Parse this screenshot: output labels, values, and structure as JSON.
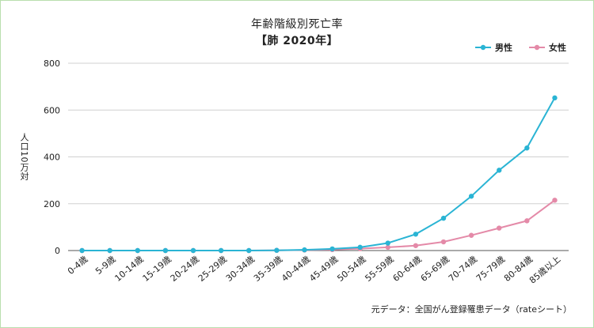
{
  "chart_data": {
    "type": "line",
    "title": "年齢階級別死亡率",
    "subtitle": "【肺 2020年】",
    "ylabel": "人口10万対",
    "xlabel": "",
    "ylim": [
      0,
      800
    ],
    "yticks": [
      0,
      200,
      400,
      600,
      800
    ],
    "grid": true,
    "legend_position": "top-right",
    "categories": [
      "0-4歳",
      "5-9歳",
      "10-14歳",
      "15-19歳",
      "20-24歳",
      "25-29歳",
      "30-34歳",
      "35-39歳",
      "40-44歳",
      "45-49歳",
      "50-54歳",
      "55-59歳",
      "60-64歳",
      "65-69歳",
      "70-74歳",
      "75-79歳",
      "80-84歳",
      "85歳以上"
    ],
    "series": [
      {
        "name": "男性",
        "color": "#2ab4d4",
        "values": [
          0,
          0,
          0,
          0,
          0,
          0,
          0,
          1,
          3,
          7,
          14,
          32,
          70,
          138,
          232,
          343,
          438,
          652
        ]
      },
      {
        "name": "女性",
        "color": "#e48aa8",
        "values": [
          0,
          0,
          0,
          0,
          0,
          0,
          0,
          1,
          2,
          4,
          8,
          14,
          21,
          37,
          65,
          96,
          127,
          215
        ]
      }
    ],
    "source": "元データ：全国がん登録罹患データ（rateシート）"
  }
}
